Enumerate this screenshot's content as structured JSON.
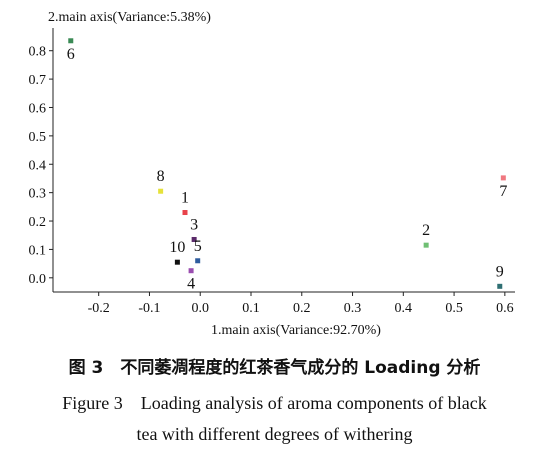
{
  "chart_data": {
    "type": "scatter",
    "title": "",
    "ylabel": "2.main axis(Variance:5.38%)",
    "xlabel": "1.main axis(Variance:92.70%)",
    "xlim": [
      -0.29,
      0.62
    ],
    "ylim": [
      -0.05,
      0.88
    ],
    "x_ticks": [
      -0.2,
      -0.1,
      0.0,
      0.1,
      0.2,
      0.3,
      0.4,
      0.5,
      0.6
    ],
    "x_tick_labels": [
      "-0.2",
      "-0.1",
      "0.0",
      "0.1",
      "0.2",
      "0.3",
      "0.4",
      "0.5",
      "0.6"
    ],
    "y_ticks": [
      0.0,
      0.1,
      0.2,
      0.3,
      0.4,
      0.5,
      0.6,
      0.7,
      0.8
    ],
    "y_tick_labels": [
      "0.0",
      "0.1",
      "0.2",
      "0.3",
      "0.4",
      "0.5",
      "0.6",
      "0.7",
      "0.8"
    ],
    "grid": false,
    "points": [
      {
        "label": "1",
        "x": -0.03,
        "y": 0.23,
        "color": "#e8424b",
        "label_pos": "above"
      },
      {
        "label": "2",
        "x": 0.445,
        "y": 0.115,
        "color": "#6fbf73",
        "label_pos": "above"
      },
      {
        "label": "3",
        "x": -0.012,
        "y": 0.135,
        "color": "#5a2a6a",
        "label_pos": "above"
      },
      {
        "label": "4",
        "x": -0.018,
        "y": 0.025,
        "color": "#9a4db0",
        "label_pos": "below"
      },
      {
        "label": "5",
        "x": -0.005,
        "y": 0.06,
        "color": "#2e5c9e",
        "label_pos": "above"
      },
      {
        "label": "6",
        "x": -0.255,
        "y": 0.835,
        "color": "#3a8a55",
        "label_pos": "below"
      },
      {
        "label": "7",
        "x": 0.597,
        "y": 0.352,
        "color": "#f07880",
        "label_pos": "below"
      },
      {
        "label": "8",
        "x": -0.078,
        "y": 0.305,
        "color": "#e6e23a",
        "label_pos": "above"
      },
      {
        "label": "9",
        "x": 0.59,
        "y": -0.03,
        "color": "#2f6f73",
        "label_pos": "above"
      },
      {
        "label": "10",
        "x": -0.045,
        "y": 0.055,
        "color": "#111111",
        "label_pos": "above"
      }
    ]
  },
  "caption": {
    "cn": "图 3　不同萎凋程度的红茶香气成分的 Loading 分析",
    "en_line1": "Figure 3　Loading analysis of aroma components of black",
    "en_line2": "tea with different degrees of withering"
  }
}
